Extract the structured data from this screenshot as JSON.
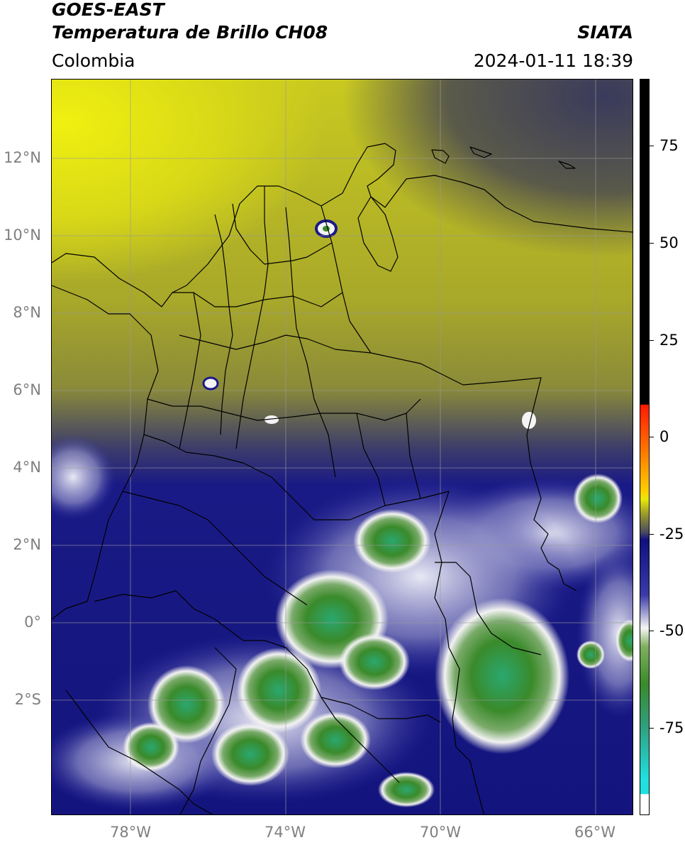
{
  "header": {
    "satellite": "GOES-EAST",
    "product": "Temperatura de Brillo CH08",
    "brand": "SIATA",
    "region": "Colombia",
    "timestamp": "2024-01-11 18:39"
  },
  "map": {
    "lat_labels": [
      "12°N",
      "10°N",
      "8°N",
      "6°N",
      "4°N",
      "2°N",
      "0°",
      "2°S"
    ],
    "lon_labels": [
      "78°W",
      "74°W",
      "70°W",
      "66°W"
    ]
  },
  "colorbar": {
    "labels": [
      "75",
      "50",
      "25",
      "0",
      "-25",
      "-50",
      "-75"
    ],
    "colors": {
      "yellow": "#e8e80a",
      "olive": "#9a9a2a",
      "gray": "#4a4a60",
      "navy": "#101080",
      "white": "#f4f4f4",
      "green": "#3a8a2a",
      "cyan": "#20e0e0",
      "red": "#ff2000",
      "black": "#000000"
    }
  }
}
